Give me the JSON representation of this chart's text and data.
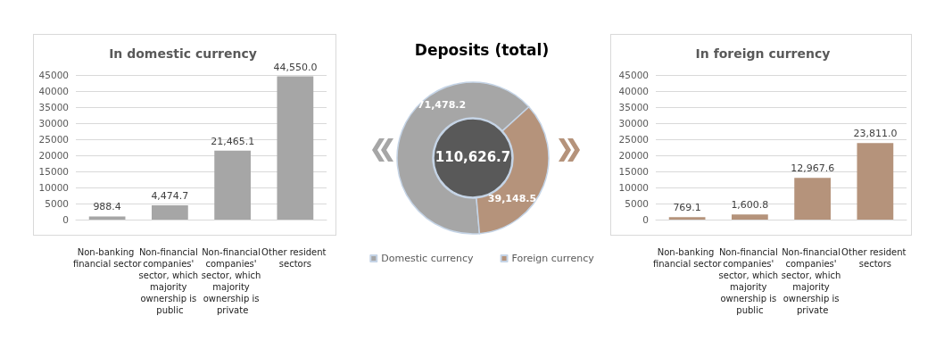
{
  "chart_data": [
    {
      "type": "bar",
      "title": "In domestic currency",
      "categories": [
        "Non-banking financial sector",
        "Non-financial companies' sector, which majority ownership is public",
        "Non-financial companies' sector, which majority ownership is private",
        "Other resident sectors"
      ],
      "values": [
        988.4,
        4474.7,
        21465.1,
        44550.0
      ],
      "value_labels": [
        "988.4",
        "4,474.7",
        "21,465.1",
        "44,550.0"
      ],
      "color": "#a6a6a6",
      "ylim": [
        0,
        45000
      ],
      "yticks": [
        0,
        5000,
        10000,
        15000,
        20000,
        25000,
        30000,
        35000,
        40000,
        45000
      ],
      "grid": "y"
    },
    {
      "type": "donut",
      "title": "Deposits (total)",
      "categories": [
        "Domestic currency",
        "Foreign currency"
      ],
      "values": [
        71478.2,
        39148.5
      ],
      "value_labels": [
        "71,478.2",
        "39,148.5"
      ],
      "colors": [
        "#a6a6a6",
        "#b5937b"
      ],
      "legend": "bottom",
      "annotations": [
        "110,626.7"
      ]
    },
    {
      "type": "bar",
      "title": "In foreign currency",
      "categories": [
        "Non-banking financial sector",
        "Non-financial companies' sector, which majority ownership is public",
        "Non-financial companies' sector, which majority ownership is private",
        "Other resident sectors"
      ],
      "values": [
        769.1,
        1600.8,
        12967.6,
        23811.0
      ],
      "value_labels": [
        "769.1",
        "1,600.8",
        "12,967.6",
        "23,811.0"
      ],
      "color": "#b5937b",
      "ylim": [
        0,
        45000
      ],
      "yticks": [
        0,
        5000,
        10000,
        15000,
        20000,
        25000,
        30000,
        35000,
        40000,
        45000
      ],
      "grid": "y"
    }
  ]
}
